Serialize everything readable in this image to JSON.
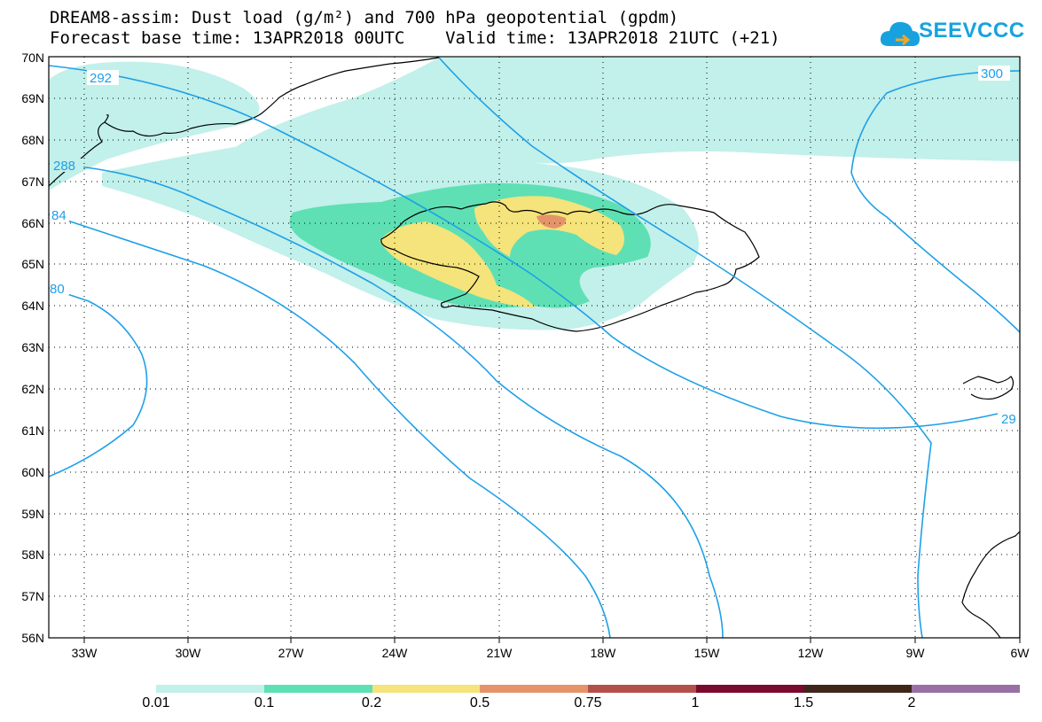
{
  "header": {
    "title_line1": "DREAM8-assim: Dust load (g/m²) and 700 hPa geopotential (gpdm)",
    "title_line2": "Forecast base time: 13APR2018 00UTC    Valid time: 13APR2018 21UTC (+21)"
  },
  "logo": {
    "text": "SEEVCCC",
    "color": "#17a2df",
    "icon": "cloud-icon"
  },
  "axes": {
    "lat_labels": [
      "70N",
      "69N",
      "68N",
      "67N",
      "66N",
      "65N",
      "64N",
      "63N",
      "62N",
      "61N",
      "60N",
      "59N",
      "58N",
      "57N",
      "56N"
    ],
    "lon_labels": [
      "33W",
      "30W",
      "27W",
      "24W",
      "21W",
      "18W",
      "15W",
      "12W",
      "9W",
      "6W"
    ],
    "lat_range": [
      56,
      70
    ],
    "lon_range": [
      -34.5,
      -6
    ],
    "grid": "dotted"
  },
  "contours": {
    "color": "#1ea0e8",
    "labels": [
      "292",
      "300",
      "288",
      "84",
      "80",
      "29"
    ]
  },
  "colorbar": {
    "labels": [
      "0.01",
      "0.1",
      "0.2",
      "0.5",
      "0.75",
      "1",
      "1.5",
      "2"
    ],
    "colors": [
      "#c2f0ea",
      "#5ee0b4",
      "#f5e37b",
      "#e5946a",
      "#b4504a",
      "#7a0a2e",
      "#40261a",
      "#9870a6"
    ]
  }
}
